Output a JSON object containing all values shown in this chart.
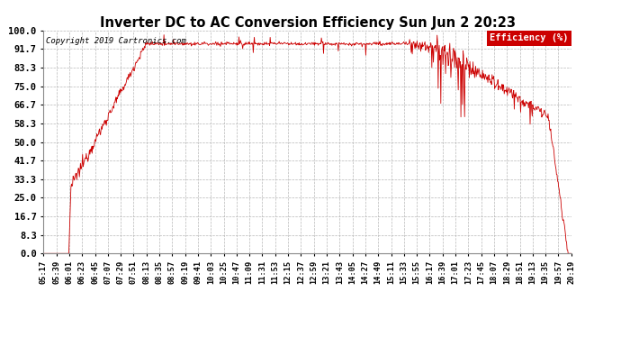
{
  "title": "Inverter DC to AC Conversion Efficiency Sun Jun 2 20:23",
  "copyright": "Copyright 2019 Cartronics.com",
  "legend_label": "Efficiency (%)",
  "legend_bg": "#cc0000",
  "legend_text_color": "#ffffff",
  "line_color": "#cc0000",
  "bg_color": "#ffffff",
  "plot_bg_color": "#ffffff",
  "grid_color": "#b0b0b0",
  "ylim": [
    0.0,
    100.0
  ],
  "ytick_values": [
    0.0,
    8.3,
    16.7,
    25.0,
    33.3,
    41.7,
    50.0,
    58.3,
    66.7,
    75.0,
    83.3,
    91.7,
    100.0
  ],
  "xtick_labels": [
    "05:17",
    "05:39",
    "06:01",
    "06:23",
    "06:45",
    "07:07",
    "07:29",
    "07:51",
    "08:13",
    "08:35",
    "08:57",
    "09:19",
    "09:41",
    "10:03",
    "10:25",
    "10:47",
    "11:09",
    "11:31",
    "11:53",
    "12:15",
    "12:37",
    "12:59",
    "13:21",
    "13:43",
    "14:05",
    "14:27",
    "14:49",
    "15:11",
    "15:33",
    "15:55",
    "16:17",
    "16:39",
    "17:01",
    "17:23",
    "17:45",
    "18:07",
    "18:29",
    "18:51",
    "19:13",
    "19:35",
    "19:57",
    "20:19"
  ],
  "n_points": 1000
}
